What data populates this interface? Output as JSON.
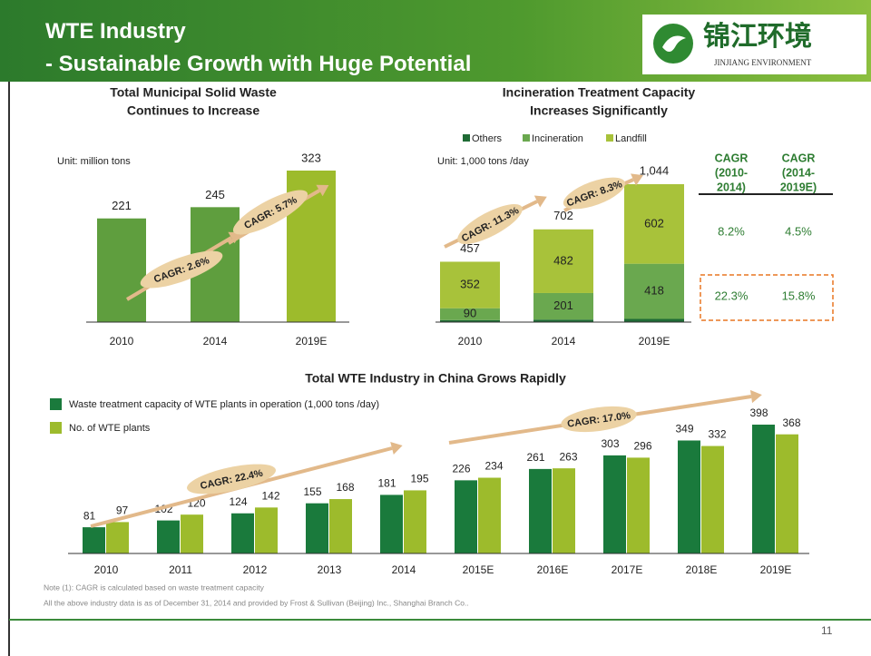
{
  "header": {
    "title": "WTE Industry",
    "subtitle": "- Sustainable Growth with Huge Potential",
    "logo_text": "锦江环境",
    "logo_subtext": "JINJIANG ENVIRONMENT"
  },
  "chart_data": [
    {
      "type": "bar",
      "title": [
        "Total Municipal Solid Waste",
        "Continues to Increase"
      ],
      "unit_label": "Unit: million tons",
      "categories": [
        "2010",
        "2014",
        "2019E"
      ],
      "values": [
        221,
        245,
        323
      ],
      "colors": [
        "#5f9e3e",
        "#5f9e3e",
        "#9dbb2c"
      ],
      "annotations": [
        "CAGR: 2.6%",
        "CAGR: 5.7%"
      ]
    },
    {
      "type": "stacked_bar",
      "title": [
        "Incineration Treatment Capacity",
        "Increases Significantly"
      ],
      "unit_label": "Unit: 1,000 tons /day",
      "categories": [
        "2010",
        "2014",
        "2019E"
      ],
      "series": [
        {
          "name": "Others",
          "color": "#1f6b35",
          "values": [
            15,
            19,
            24
          ]
        },
        {
          "name": "Incineration",
          "color": "#6aa84f",
          "values": [
            90,
            201,
            418
          ]
        },
        {
          "name": "Landfill",
          "color": "#a8c23a",
          "values": [
            352,
            482,
            602
          ]
        }
      ],
      "totals": {
        "values": [
          457,
          702,
          1044
        ],
        "value_labels": [
          "457",
          "702",
          "1,044"
        ]
      },
      "annotations": [
        "CAGR: 11.3%",
        "CAGR: 8.3%"
      ]
    },
    {
      "type": "grouped_bar",
      "title": "Total WTE Industry in China Grows Rapidly",
      "categories": [
        "2010",
        "2011",
        "2012",
        "2013",
        "2014",
        "2015E",
        "2016E",
        "2017E",
        "2018E",
        "2019E"
      ],
      "series": [
        {
          "name": "Waste treatment capacity of WTE plants in operation (1,000 tons /day)",
          "color": "#1a7a3c",
          "values": [
            81,
            102,
            124,
            155,
            181,
            226,
            261,
            303,
            349,
            398
          ]
        },
        {
          "name": "No. of WTE plants",
          "color": "#9dbb2c",
          "values": [
            97,
            120,
            142,
            168,
            195,
            234,
            263,
            296,
            332,
            368
          ]
        }
      ],
      "annotations": [
        "CAGR: 22.4%",
        "CAGR: 17.0%"
      ]
    }
  ],
  "table": {
    "headers": [
      [
        "CAGR",
        "(2010-",
        "2014)"
      ],
      [
        "CAGR",
        "(2014-",
        "2019E)"
      ]
    ],
    "rows": [
      [
        "8.2%",
        "4.5%"
      ],
      [
        "22.3%",
        "15.8%"
      ]
    ]
  },
  "notes": [
    "Note (1): CAGR is calculated based on waste treatment capacity",
    "All the above industry data is as of December 31, 2014 and provided by Frost & Sullivan (Beijing) Inc., Shanghai Branch Co.."
  ],
  "page_number": "11"
}
